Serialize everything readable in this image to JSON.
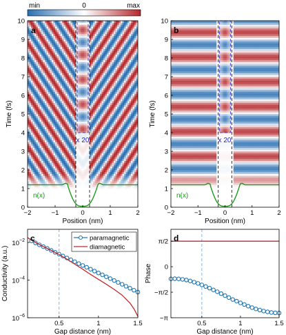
{
  "colorbar": {
    "min_label": "min",
    "mid_label": "0",
    "max_label": "max",
    "colors": [
      "#2a6fb2",
      "#ffffff",
      "#b4282c"
    ]
  },
  "panels": {
    "a": {
      "label": "a",
      "magnify": "x 20",
      "density_label": "n(x)"
    },
    "b": {
      "label": "b",
      "magnify": "x 20",
      "density_label": "n(x)"
    },
    "c": {
      "label": "c"
    },
    "d": {
      "label": "d"
    }
  },
  "chart_data": [
    {
      "panel": "a",
      "type": "heatmap",
      "xlabel": "Position (nm)",
      "ylabel": "Time (fs)",
      "xlim": [
        -2,
        2
      ],
      "ylim": [
        0,
        10
      ],
      "xticks": [
        "−2",
        "−1",
        "0",
        "1",
        "2"
      ],
      "yticks": [
        "0",
        "1",
        "2",
        "3",
        "4",
        "5",
        "6",
        "7",
        "8",
        "9",
        "10"
      ],
      "gap_nm": [
        -0.25,
        0.25
      ],
      "magnified_region_time_fs": [
        4,
        10
      ],
      "pattern": "V-shaped stripes propagating outward from the gap"
    },
    {
      "panel": "b",
      "type": "heatmap",
      "xlabel": "Position (nm)",
      "ylabel": "Time (fs)",
      "xlim": [
        -2,
        2
      ],
      "ylim": [
        0,
        10
      ],
      "xticks": [
        "−2",
        "−1",
        "0",
        "1",
        "2"
      ],
      "yticks": [
        "0",
        "1",
        "2",
        "3",
        "4",
        "5",
        "6",
        "7",
        "8",
        "9",
        "10"
      ],
      "gap_nm": [
        -0.25,
        0.25
      ],
      "magnified_region_time_fs": [
        4,
        10
      ],
      "pattern": "horizontal stripes (oscillation in time, uniform in position)"
    },
    {
      "panel": "c",
      "type": "line",
      "xlabel": "Gap distance (nm)",
      "ylabel": "Conductivity (a.u.)",
      "xlim": [
        0.1,
        1.5
      ],
      "ylim": [
        1e-06,
        0.05
      ],
      "yscale": "log",
      "xticks": [
        "0.5",
        "1",
        "1.5"
      ],
      "yticks": [
        "10",
        "10",
        "10"
      ],
      "ytick_exponents": [
        "−6",
        "−4",
        "−2"
      ],
      "marker_line_x": 0.5,
      "legend_position": "top-right",
      "series": [
        {
          "name": "paramagnetic",
          "color": "#1f77b4",
          "marker": "circle",
          "x": [
            0.15,
            0.2,
            0.25,
            0.3,
            0.35,
            0.4,
            0.45,
            0.5,
            0.55,
            0.6,
            0.65,
            0.7,
            0.75,
            0.8,
            0.85,
            0.9,
            0.95,
            1.0,
            1.05,
            1.1,
            1.15,
            1.2,
            1.25,
            1.3,
            1.35,
            1.4,
            1.45,
            1.5
          ],
          "y": [
            0.012,
            0.0095,
            0.0075,
            0.006,
            0.0048,
            0.0038,
            0.003,
            0.0024,
            0.0019,
            0.0015,
            0.0012,
            0.00095,
            0.00075,
            0.0006,
            0.00048,
            0.00038,
            0.0003,
            0.00024,
            0.00019,
            0.00015,
            0.00012,
            9.5e-05,
            7.5e-05,
            6e-05,
            4.7e-05,
            3.7e-05,
            2.9e-05,
            2.3e-05
          ]
        },
        {
          "name": "diamagnetic",
          "color": "#c1272d",
          "x": [
            0.1,
            0.2,
            0.3,
            0.4,
            0.5,
            0.6,
            0.7,
            0.8,
            0.9,
            1.0,
            1.1,
            1.2,
            1.3,
            1.4,
            1.45,
            1.5
          ],
          "y": [
            0.018,
            0.01,
            0.006,
            0.0038,
            0.0023,
            0.0013,
            0.0007,
            0.00038,
            0.0002,
            0.00011,
            6e-05,
            3.2e-05,
            1.6e-05,
            6e-06,
            3e-06,
            1.2e-06
          ]
        }
      ]
    },
    {
      "panel": "d",
      "type": "line",
      "xlabel": "Gap distance (nm)",
      "ylabel": "Phase",
      "xlim": [
        0.1,
        1.5
      ],
      "ylim": [
        -3.1416,
        2.3
      ],
      "xticks": [
        "0.5",
        "1",
        "1.5"
      ],
      "yticks": [
        "−π",
        "−π/2",
        "0",
        "π/2"
      ],
      "marker_line_x": 0.5,
      "series": [
        {
          "name": "paramagnetic",
          "color": "#1f77b4",
          "marker": "circle",
          "x": [
            0.1,
            0.15,
            0.2,
            0.25,
            0.3,
            0.35,
            0.4,
            0.45,
            0.5,
            0.55,
            0.6,
            0.65,
            0.7,
            0.75,
            0.8,
            0.85,
            0.9,
            0.95,
            1.0,
            1.05,
            1.1,
            1.15,
            1.2,
            1.25,
            1.3,
            1.35,
            1.4,
            1.45,
            1.5
          ],
          "y": [
            -0.75,
            -0.74,
            -0.75,
            -0.78,
            -0.82,
            -0.88,
            -0.95,
            -1.03,
            -1.12,
            -1.22,
            -1.32,
            -1.43,
            -1.54,
            -1.66,
            -1.78,
            -1.9,
            -2.02,
            -2.12,
            -2.23,
            -2.33,
            -2.43,
            -2.52,
            -2.6,
            -2.67,
            -2.73,
            -2.78,
            -2.82,
            -2.84,
            -2.85
          ]
        },
        {
          "name": "diamagnetic",
          "color": "#c1272d",
          "x": [
            0.1,
            1.5
          ],
          "y": [
            1.5708,
            1.5708
          ]
        }
      ]
    }
  ]
}
